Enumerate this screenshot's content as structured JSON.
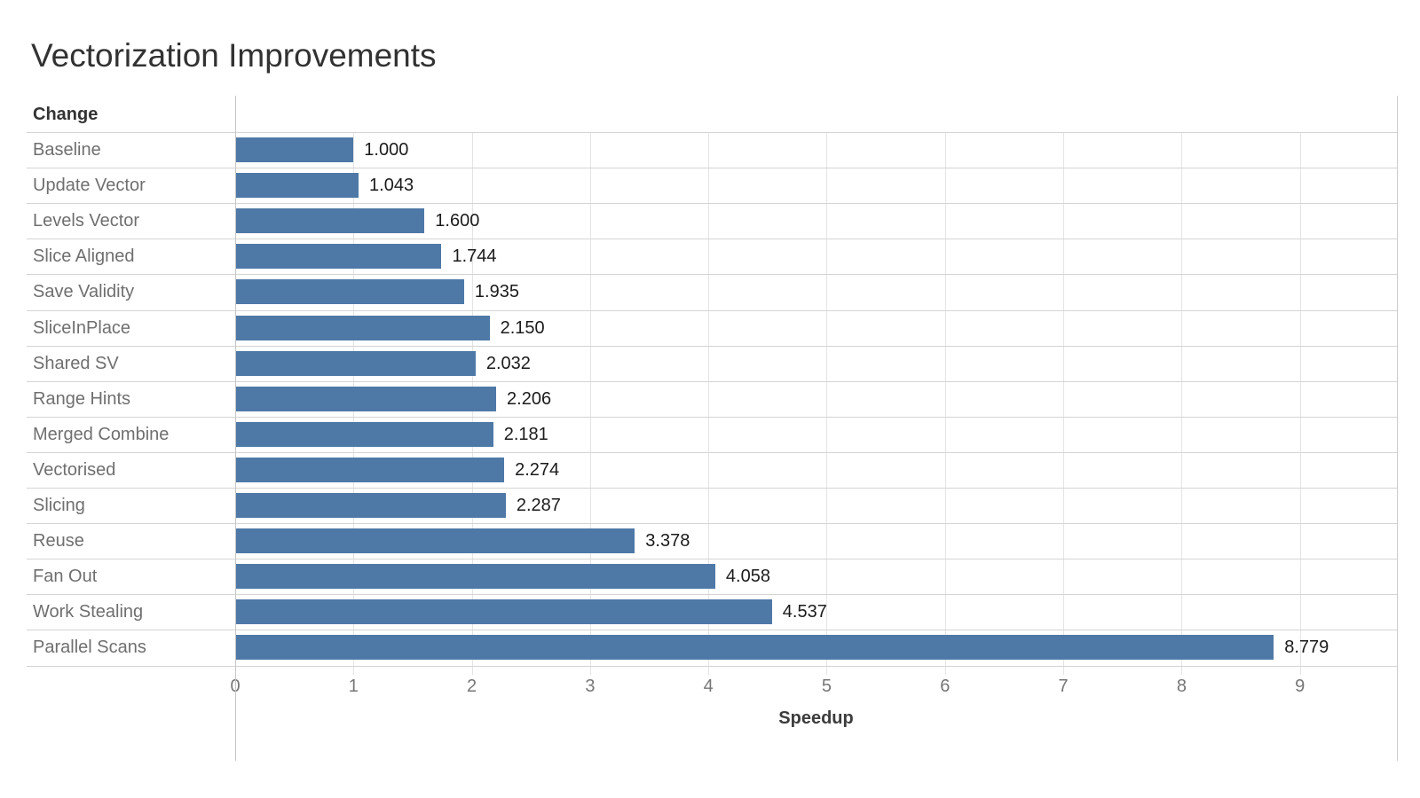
{
  "title": "Vectorization Improvements",
  "colors": {
    "bar": "#4e79a7",
    "title_text": "#323232",
    "category_text": "#6f6f6f",
    "value_text": "#1b1b1b",
    "grid_line": "#e4e4e4",
    "row_line": "#d4d4d4",
    "axis_line": "#c6c6c6"
  },
  "chart_data": {
    "type": "bar",
    "orientation": "horizontal",
    "title": "Vectorization Improvements",
    "category_header": "Change",
    "categories": [
      "Baseline",
      "Update Vector",
      "Levels Vector",
      "Slice Aligned",
      "Save Validity",
      "SliceInPlace",
      "Shared SV",
      "Range Hints",
      "Merged Combine",
      "Vectorised",
      "Slicing",
      "Reuse",
      "Fan Out",
      "Work Stealing",
      "Parallel Scans"
    ],
    "values": [
      1.0,
      1.043,
      1.6,
      1.744,
      1.935,
      2.15,
      2.032,
      2.206,
      2.181,
      2.274,
      2.287,
      3.378,
      4.058,
      4.537,
      8.779
    ],
    "value_labels": [
      "1.000",
      "1.043",
      "1.600",
      "1.744",
      "1.935",
      "2.150",
      "2.032",
      "2.206",
      "2.181",
      "2.274",
      "2.287",
      "3.378",
      "4.058",
      "4.537",
      "8.779"
    ],
    "xlabel": "Speedup",
    "xlim": [
      0,
      9.82
    ],
    "xticks": [
      0,
      1,
      2,
      3,
      4,
      5,
      6,
      7,
      8,
      9
    ],
    "grid": "vertical",
    "legend": "none",
    "bar_color": "#4e79a7"
  }
}
